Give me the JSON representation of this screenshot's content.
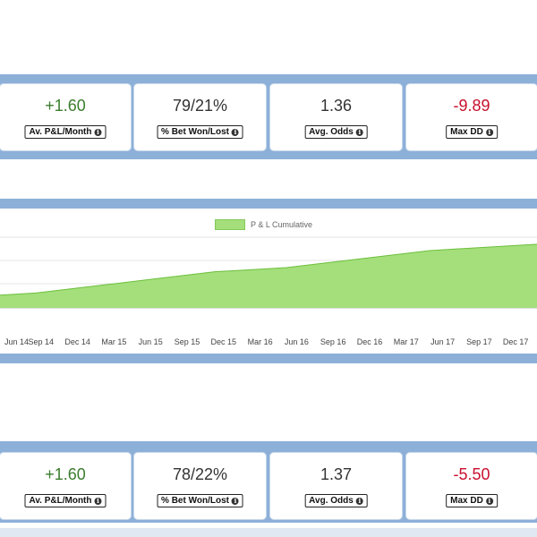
{
  "stats_top": [
    {
      "value": "+1.60",
      "tone": "pos",
      "label": "Av. P&L/Month"
    },
    {
      "value": "79/21%",
      "tone": "neutral",
      "label": "% Bet Won/Lost"
    },
    {
      "value": "1.36",
      "tone": "neutral",
      "label": "Avg. Odds"
    },
    {
      "value": "-9.89",
      "tone": "neg",
      "label": "Max DD"
    }
  ],
  "stats_bottom": [
    {
      "value": "+1.60",
      "tone": "pos",
      "label": "Av. P&L/Month"
    },
    {
      "value": "78/22%",
      "tone": "neutral",
      "label": "% Bet Won/Lost"
    },
    {
      "value": "1.37",
      "tone": "neutral",
      "label": "Avg. Odds"
    },
    {
      "value": "-5.50",
      "tone": "neg",
      "label": "Max DD"
    }
  ],
  "info_icon": "i",
  "colors": {
    "positive": "#3a7d2c",
    "negative": "#c8102e",
    "band": "#8db0d9",
    "area_fill": "#a4df7b",
    "area_line": "#6cbf3c"
  },
  "chart_data": {
    "type": "area",
    "legend": "P & L Cumulative",
    "x_ticks": [
      "Jun 14",
      "Sep 14",
      "Dec 14",
      "Mar 15",
      "Jun 15",
      "Sep 15",
      "Dec 15",
      "Mar 16",
      "Jun 16",
      "Sep 16",
      "Dec 16",
      "Mar 17",
      "Jun 17",
      "Sep 17",
      "Dec 17"
    ],
    "grid": true,
    "series": [
      {
        "values": [
          6,
          7,
          9,
          11,
          13,
          15,
          17,
          18,
          19,
          21,
          23,
          25,
          27,
          28,
          29,
          30
        ]
      }
    ],
    "ylim": [
      0,
      35
    ]
  }
}
